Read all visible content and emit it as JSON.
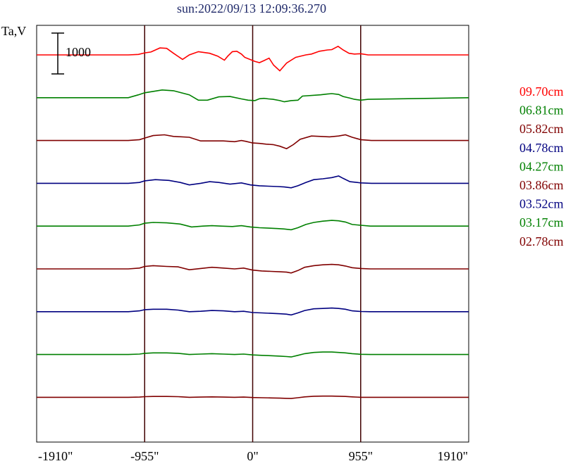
{
  "chart_data": {
    "type": "line",
    "title": "sun:2022/09/13 12:09:36.270",
    "ylabel": "Ta,V",
    "scale_bar_label": "1000",
    "scale_bar_value": 1000,
    "x_ticks": [
      {
        "value": -1910,
        "label": "-1910\""
      },
      {
        "value": -955,
        "label": "-955\""
      },
      {
        "value": 0,
        "label": "0\""
      },
      {
        "value": 955,
        "label": "955\""
      },
      {
        "value": 1910,
        "label": "1910\""
      }
    ],
    "xlim": [
      -1910,
      1910
    ],
    "vertical_lines": [
      -955,
      0,
      955
    ],
    "grid": false,
    "legend_position": "right",
    "series": [
      {
        "name": "09.70cm",
        "color": "#ff0000",
        "offset": 8,
        "points": [
          [
            -1910,
            0
          ],
          [
            -1100,
            0
          ],
          [
            -1010,
            12
          ],
          [
            -955,
            50
          ],
          [
            -900,
            70
          ],
          [
            -820,
            170
          ],
          [
            -760,
            160
          ],
          [
            -700,
            40
          ],
          [
            -620,
            -110
          ],
          [
            -560,
            0
          ],
          [
            -480,
            80
          ],
          [
            -380,
            40
          ],
          [
            -310,
            -30
          ],
          [
            -250,
            -130
          ],
          [
            -220,
            -30
          ],
          [
            -180,
            80
          ],
          [
            -140,
            90
          ],
          [
            -100,
            20
          ],
          [
            -70,
            -60
          ],
          [
            20,
            -160
          ],
          [
            60,
            -190
          ],
          [
            100,
            -140
          ],
          [
            145,
            -80
          ],
          [
            185,
            -250
          ],
          [
            240,
            -390
          ],
          [
            300,
            -200
          ],
          [
            380,
            -60
          ],
          [
            470,
            0
          ],
          [
            520,
            20
          ],
          [
            590,
            90
          ],
          [
            660,
            120
          ],
          [
            700,
            130
          ],
          [
            755,
            210
          ],
          [
            800,
            120
          ],
          [
            852,
            40
          ],
          [
            900,
            20
          ],
          [
            955,
            30
          ],
          [
            1020,
            0
          ],
          [
            1910,
            0
          ]
        ]
      },
      {
        "name": "06.81cm",
        "color": "#008000",
        "offset": 7,
        "points": [
          [
            -1910,
            0
          ],
          [
            -1100,
            0
          ],
          [
            -1010,
            70
          ],
          [
            -955,
            120
          ],
          [
            -800,
            190
          ],
          [
            -700,
            170
          ],
          [
            -560,
            70
          ],
          [
            -480,
            -60
          ],
          [
            -400,
            -60
          ],
          [
            -300,
            20
          ],
          [
            -200,
            30
          ],
          [
            -100,
            -30
          ],
          [
            -40,
            -60
          ],
          [
            20,
            -70
          ],
          [
            60,
            -25
          ],
          [
            100,
            -15
          ],
          [
            140,
            -30
          ],
          [
            180,
            -40
          ],
          [
            240,
            -70
          ],
          [
            280,
            -100
          ],
          [
            340,
            -70
          ],
          [
            400,
            -60
          ],
          [
            440,
            40
          ],
          [
            600,
            70
          ],
          [
            660,
            90
          ],
          [
            700,
            100
          ],
          [
            760,
            80
          ],
          [
            800,
            30
          ],
          [
            860,
            -10
          ],
          [
            900,
            -40
          ],
          [
            955,
            -60
          ],
          [
            1020,
            -40
          ],
          [
            1910,
            0
          ]
        ]
      },
      {
        "name": "05.82cm",
        "color": "#800000",
        "offset": 6,
        "points": [
          [
            -1910,
            0
          ],
          [
            -1100,
            0
          ],
          [
            -1000,
            20
          ],
          [
            -955,
            60
          ],
          [
            -880,
            120
          ],
          [
            -780,
            140
          ],
          [
            -700,
            100
          ],
          [
            -560,
            80
          ],
          [
            -460,
            -10
          ],
          [
            -360,
            -10
          ],
          [
            -260,
            -10
          ],
          [
            -160,
            -30
          ],
          [
            -100,
            0
          ],
          [
            -60,
            -20
          ],
          [
            0,
            -60
          ],
          [
            60,
            -70
          ],
          [
            120,
            -90
          ],
          [
            180,
            -100
          ],
          [
            240,
            -140
          ],
          [
            300,
            -200
          ],
          [
            360,
            -100
          ],
          [
            420,
            30
          ],
          [
            520,
            110
          ],
          [
            600,
            100
          ],
          [
            680,
            90
          ],
          [
            760,
            110
          ],
          [
            820,
            140
          ],
          [
            880,
            80
          ],
          [
            955,
            20
          ],
          [
            1050,
            0
          ],
          [
            1910,
            0
          ]
        ]
      },
      {
        "name": "04.78cm",
        "color": "#000080",
        "offset": 5,
        "points": [
          [
            -1910,
            0
          ],
          [
            -1100,
            0
          ],
          [
            -1000,
            20
          ],
          [
            -955,
            60
          ],
          [
            -860,
            90
          ],
          [
            -740,
            70
          ],
          [
            -640,
            20
          ],
          [
            -560,
            -40
          ],
          [
            -460,
            0
          ],
          [
            -380,
            40
          ],
          [
            -300,
            20
          ],
          [
            -200,
            -20
          ],
          [
            -100,
            10
          ],
          [
            -20,
            -40
          ],
          [
            60,
            -60
          ],
          [
            140,
            -70
          ],
          [
            220,
            -80
          ],
          [
            280,
            -90
          ],
          [
            340,
            -110
          ],
          [
            400,
            -60
          ],
          [
            470,
            20
          ],
          [
            540,
            90
          ],
          [
            620,
            110
          ],
          [
            700,
            140
          ],
          [
            760,
            180
          ],
          [
            800,
            120
          ],
          [
            860,
            40
          ],
          [
            955,
            10
          ],
          [
            1050,
            0
          ],
          [
            1910,
            0
          ]
        ]
      },
      {
        "name": "04.27cm",
        "color": "#008000",
        "offset": 4,
        "points": [
          [
            -1910,
            0
          ],
          [
            -1100,
            0
          ],
          [
            -1000,
            30
          ],
          [
            -955,
            70
          ],
          [
            -880,
            90
          ],
          [
            -760,
            80
          ],
          [
            -640,
            50
          ],
          [
            -540,
            -20
          ],
          [
            -440,
            0
          ],
          [
            -360,
            10
          ],
          [
            -280,
            0
          ],
          [
            -180,
            -10
          ],
          [
            -100,
            10
          ],
          [
            -20,
            -20
          ],
          [
            60,
            -40
          ],
          [
            140,
            -50
          ],
          [
            220,
            -60
          ],
          [
            280,
            -70
          ],
          [
            340,
            -90
          ],
          [
            400,
            -40
          ],
          [
            470,
            40
          ],
          [
            540,
            90
          ],
          [
            620,
            120
          ],
          [
            700,
            140
          ],
          [
            760,
            130
          ],
          [
            820,
            100
          ],
          [
            880,
            40
          ],
          [
            955,
            20
          ],
          [
            1040,
            0
          ],
          [
            1910,
            0
          ]
        ]
      },
      {
        "name": "03.86cm",
        "color": "#800000",
        "offset": 3,
        "points": [
          [
            -1910,
            0
          ],
          [
            -1100,
            0
          ],
          [
            -1000,
            20
          ],
          [
            -955,
            60
          ],
          [
            -880,
            80
          ],
          [
            -760,
            60
          ],
          [
            -660,
            50
          ],
          [
            -560,
            -20
          ],
          [
            -460,
            10
          ],
          [
            -360,
            40
          ],
          [
            -260,
            20
          ],
          [
            -160,
            0
          ],
          [
            -80,
            20
          ],
          [
            0,
            -30
          ],
          [
            80,
            -50
          ],
          [
            160,
            -60
          ],
          [
            240,
            -70
          ],
          [
            300,
            -80
          ],
          [
            340,
            -100
          ],
          [
            400,
            -40
          ],
          [
            460,
            40
          ],
          [
            540,
            80
          ],
          [
            620,
            100
          ],
          [
            700,
            110
          ],
          [
            760,
            100
          ],
          [
            820,
            70
          ],
          [
            880,
            30
          ],
          [
            955,
            10
          ],
          [
            1040,
            0
          ],
          [
            1910,
            0
          ]
        ]
      },
      {
        "name": "03.52cm",
        "color": "#000080",
        "offset": 2,
        "points": [
          [
            -1910,
            0
          ],
          [
            -1100,
            0
          ],
          [
            -1000,
            20
          ],
          [
            -955,
            50
          ],
          [
            -880,
            60
          ],
          [
            -760,
            60
          ],
          [
            -660,
            40
          ],
          [
            -560,
            0
          ],
          [
            -460,
            10
          ],
          [
            -360,
            30
          ],
          [
            -260,
            20
          ],
          [
            -160,
            0
          ],
          [
            -80,
            10
          ],
          [
            0,
            -20
          ],
          [
            80,
            -30
          ],
          [
            160,
            -40
          ],
          [
            240,
            -50
          ],
          [
            300,
            -60
          ],
          [
            340,
            -80
          ],
          [
            400,
            -30
          ],
          [
            460,
            30
          ],
          [
            540,
            70
          ],
          [
            620,
            80
          ],
          [
            700,
            90
          ],
          [
            760,
            80
          ],
          [
            820,
            60
          ],
          [
            880,
            20
          ],
          [
            955,
            5
          ],
          [
            1040,
            0
          ],
          [
            1910,
            0
          ]
        ]
      },
      {
        "name": "03.17cm",
        "color": "#008000",
        "offset": 1,
        "points": [
          [
            -1910,
            0
          ],
          [
            -1100,
            0
          ],
          [
            -1000,
            10
          ],
          [
            -955,
            30
          ],
          [
            -880,
            40
          ],
          [
            -760,
            40
          ],
          [
            -660,
            30
          ],
          [
            -560,
            0
          ],
          [
            -460,
            10
          ],
          [
            -360,
            20
          ],
          [
            -260,
            10
          ],
          [
            -160,
            0
          ],
          [
            -80,
            10
          ],
          [
            0,
            -10
          ],
          [
            80,
            -20
          ],
          [
            160,
            -30
          ],
          [
            240,
            -40
          ],
          [
            300,
            -50
          ],
          [
            340,
            -60
          ],
          [
            400,
            -20
          ],
          [
            460,
            20
          ],
          [
            540,
            50
          ],
          [
            620,
            60
          ],
          [
            700,
            60
          ],
          [
            760,
            50
          ],
          [
            820,
            40
          ],
          [
            880,
            20
          ],
          [
            955,
            5
          ],
          [
            1040,
            0
          ],
          [
            1910,
            0
          ]
        ]
      },
      {
        "name": "02.78cm",
        "color": "#800000",
        "offset": 0,
        "points": [
          [
            -1910,
            0
          ],
          [
            -1100,
            0
          ],
          [
            -1000,
            5
          ],
          [
            -955,
            15
          ],
          [
            -880,
            20
          ],
          [
            -760,
            20
          ],
          [
            -660,
            15
          ],
          [
            -560,
            0
          ],
          [
            -460,
            5
          ],
          [
            -360,
            10
          ],
          [
            -260,
            5
          ],
          [
            -160,
            0
          ],
          [
            -80,
            5
          ],
          [
            0,
            -5
          ],
          [
            80,
            -10
          ],
          [
            160,
            -15
          ],
          [
            240,
            -20
          ],
          [
            300,
            -25
          ],
          [
            340,
            -30
          ],
          [
            400,
            -10
          ],
          [
            460,
            10
          ],
          [
            540,
            25
          ],
          [
            620,
            30
          ],
          [
            700,
            30
          ],
          [
            760,
            25
          ],
          [
            820,
            20
          ],
          [
            880,
            10
          ],
          [
            955,
            0
          ],
          [
            1040,
            0
          ],
          [
            1910,
            0
          ]
        ]
      }
    ]
  }
}
